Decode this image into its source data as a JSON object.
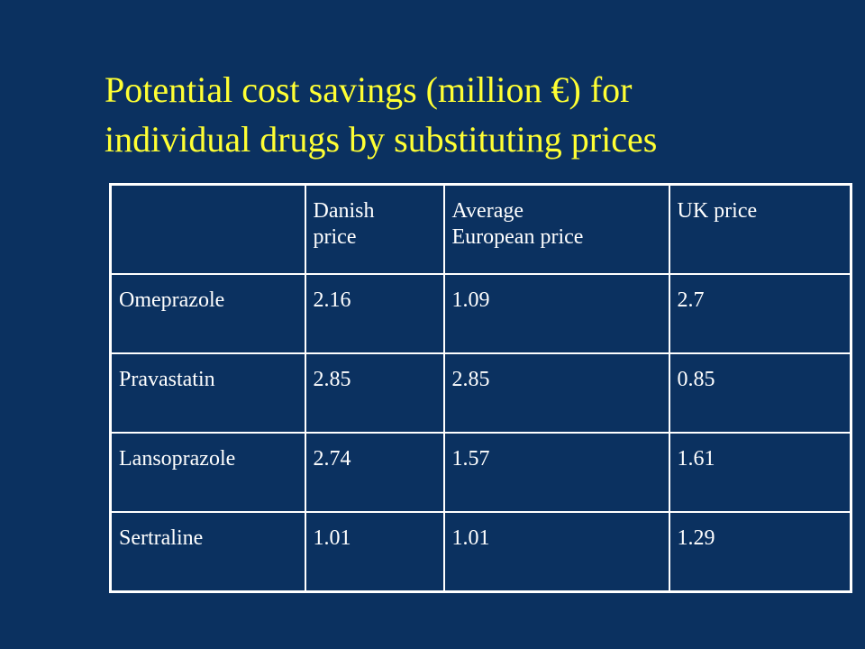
{
  "slide": {
    "title_line1": "Potential cost savings (million €) for",
    "title_line2": "individual drugs by substituting prices"
  },
  "table": {
    "columns": [
      "",
      "Danish price",
      "Average European price",
      "UK price"
    ],
    "header_lines": [
      [],
      [
        "Danish",
        "price"
      ],
      [
        "Average",
        "European price"
      ],
      [
        "UK price"
      ]
    ],
    "rows": [
      {
        "drug": "Omeprazole",
        "danish": "2.16",
        "european": "1.09",
        "uk": "2.7"
      },
      {
        "drug": "Pravastatin",
        "danish": "2.85",
        "european": "2.85",
        "uk": "0.85"
      },
      {
        "drug": "Lansoprazole",
        "danish": "2.74",
        "european": "1.57",
        "uk": "1.61"
      },
      {
        "drug": "Sertraline",
        "danish": "1.01",
        "european": "1.01",
        "uk": "1.29"
      }
    ]
  },
  "colors": {
    "background": "#0b3160",
    "title": "#ffff33",
    "text": "#ffffff",
    "border": "#ffffff"
  }
}
